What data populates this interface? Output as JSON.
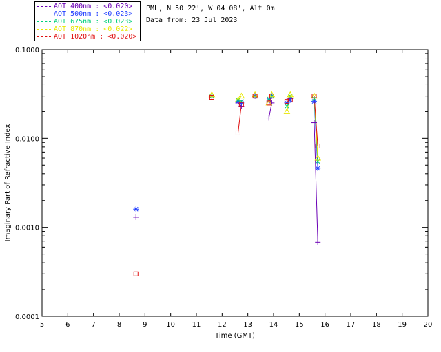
{
  "header": {
    "site": "PML, N 50 22', W 04 08', Alt 0m",
    "date": "Data from: 23 Jul 2023"
  },
  "legend": [
    {
      "label": "AOT  400nm : <0.020>",
      "color": "#6b00b5"
    },
    {
      "label": "AOT  500nm : <0.023>",
      "color": "#1f3cff"
    },
    {
      "label": "AOT  675nm : <0.023>",
      "color": "#00d07a"
    },
    {
      "label": "AOT  870nm : <0.022>",
      "color": "#e8e800"
    },
    {
      "label": "AOT 1020nm : <0.020>",
      "color": "#e01010"
    }
  ],
  "chart_data": {
    "type": "scatter",
    "xlabel": "Time (GMT)",
    "ylabel": "Imaginary Part of Refractive Index",
    "xlim": [
      5,
      20
    ],
    "ylim": [
      0.0001,
      0.1
    ],
    "yscale": "log",
    "xticks": [
      "5",
      "6",
      "7",
      "8",
      "9",
      "10",
      "11",
      "12",
      "13",
      "14",
      "15",
      "16",
      "17",
      "18",
      "19",
      "20"
    ],
    "yticks": [
      "0.0001",
      "0.0010",
      "0.0100",
      "0.1000"
    ],
    "series": [
      {
        "name": "AOT  400nm : <0.020>",
        "marker": "plus",
        "color": "#6b00b5",
        "x": [
          8.65,
          11.6,
          12.62,
          12.75,
          13.28,
          13.82,
          13.93,
          14.52,
          14.65,
          15.58,
          15.72
        ],
        "y": [
          0.0013,
          0.03,
          0.025,
          0.023,
          0.03,
          0.017,
          0.025,
          0.027,
          0.028,
          0.015,
          0.00068
        ],
        "segments": [
          [
            2,
            3
          ],
          [
            5,
            6
          ],
          [
            7,
            8
          ],
          [
            9,
            10
          ]
        ]
      },
      {
        "name": "AOT  500nm : <0.023>",
        "marker": "star",
        "color": "#1f3cff",
        "x": [
          8.65,
          11.6,
          12.62,
          12.75,
          13.28,
          13.82,
          13.93,
          14.52,
          14.65,
          15.58,
          15.72
        ],
        "y": [
          0.0016,
          0.03,
          0.026,
          0.025,
          0.03,
          0.027,
          0.03,
          0.025,
          0.027,
          0.026,
          0.0046
        ],
        "segments": [
          [
            2,
            3
          ],
          [
            5,
            6
          ],
          [
            7,
            8
          ],
          [
            9,
            10
          ]
        ]
      },
      {
        "name": "AOT  675nm : <0.023>",
        "marker": "cross",
        "color": "#00d07a",
        "x": [
          11.6,
          12.62,
          12.75,
          13.28,
          13.82,
          13.93,
          14.52,
          14.65,
          15.58,
          15.72
        ],
        "y": [
          0.03,
          0.027,
          0.026,
          0.03,
          0.028,
          0.03,
          0.023,
          0.03,
          0.028,
          0.0055
        ],
        "segments": [
          [
            1,
            2
          ],
          [
            4,
            5
          ],
          [
            6,
            7
          ],
          [
            8,
            9
          ]
        ]
      },
      {
        "name": "AOT  870nm : <0.022>",
        "marker": "triangle",
        "color": "#e8e800",
        "x": [
          11.6,
          12.62,
          12.75,
          13.28,
          13.82,
          13.93,
          14.52,
          14.65,
          15.58,
          15.72
        ],
        "y": [
          0.031,
          0.027,
          0.03,
          0.031,
          0.025,
          0.031,
          0.02,
          0.031,
          0.03,
          0.006
        ],
        "segments": [
          [
            1,
            2
          ],
          [
            4,
            5
          ],
          [
            6,
            7
          ],
          [
            8,
            9
          ]
        ]
      },
      {
        "name": "AOT 1020nm : <0.020>",
        "marker": "square",
        "color": "#e01010",
        "x": [
          8.65,
          11.6,
          12.62,
          12.75,
          13.28,
          13.82,
          13.93,
          14.52,
          14.65,
          15.58,
          15.72
        ],
        "y": [
          0.0003,
          0.029,
          0.0115,
          0.024,
          0.03,
          0.025,
          0.03,
          0.026,
          0.027,
          0.03,
          0.0082
        ],
        "segments": [
          [
            2,
            3
          ],
          [
            5,
            6
          ],
          [
            7,
            8
          ],
          [
            9,
            10
          ]
        ]
      }
    ]
  }
}
